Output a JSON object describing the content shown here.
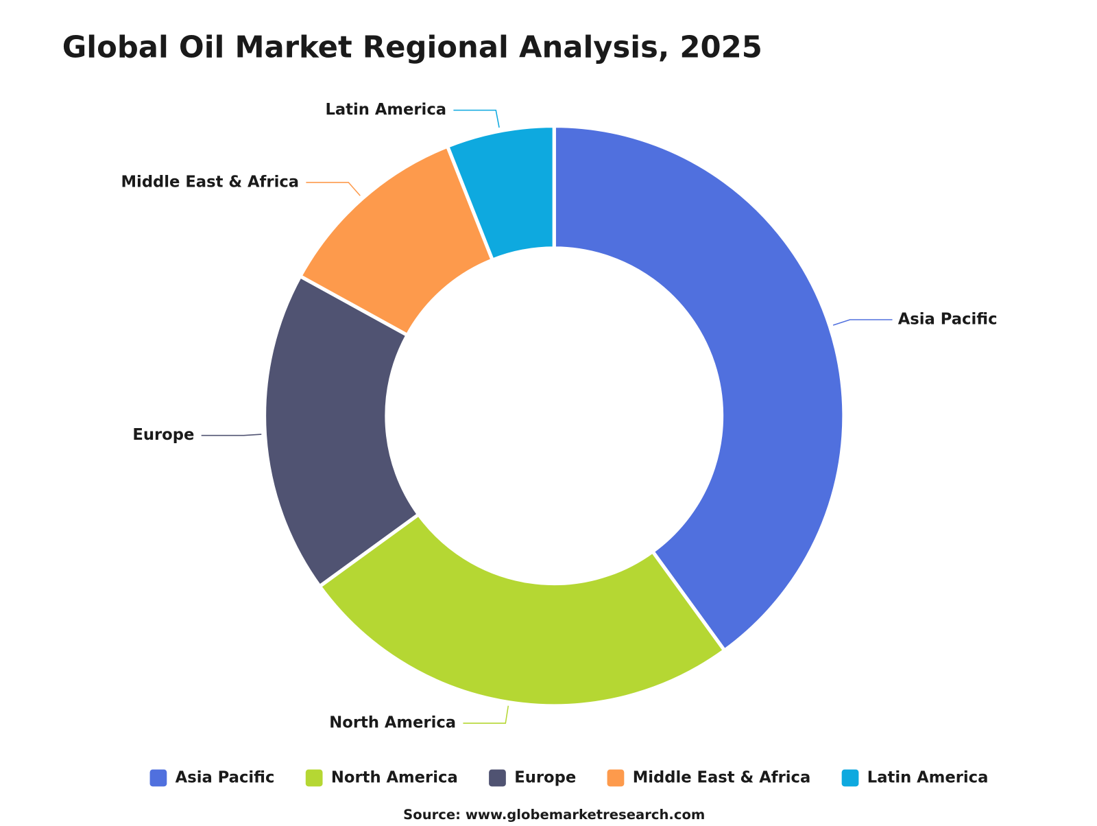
{
  "chart_data": {
    "type": "donut",
    "title": "Global Oil Market Regional Analysis, 2025",
    "categories": [
      "Asia Pacific",
      "North America",
      "Europe",
      "Middle East & Africa",
      "Latin America"
    ],
    "values": [
      40,
      25,
      18,
      11,
      6
    ],
    "colors": [
      "#5070de",
      "#b5d733",
      "#505372",
      "#fd9a4c",
      "#0ea9df"
    ],
    "source": "Source: www.globemarketresearch.com"
  }
}
